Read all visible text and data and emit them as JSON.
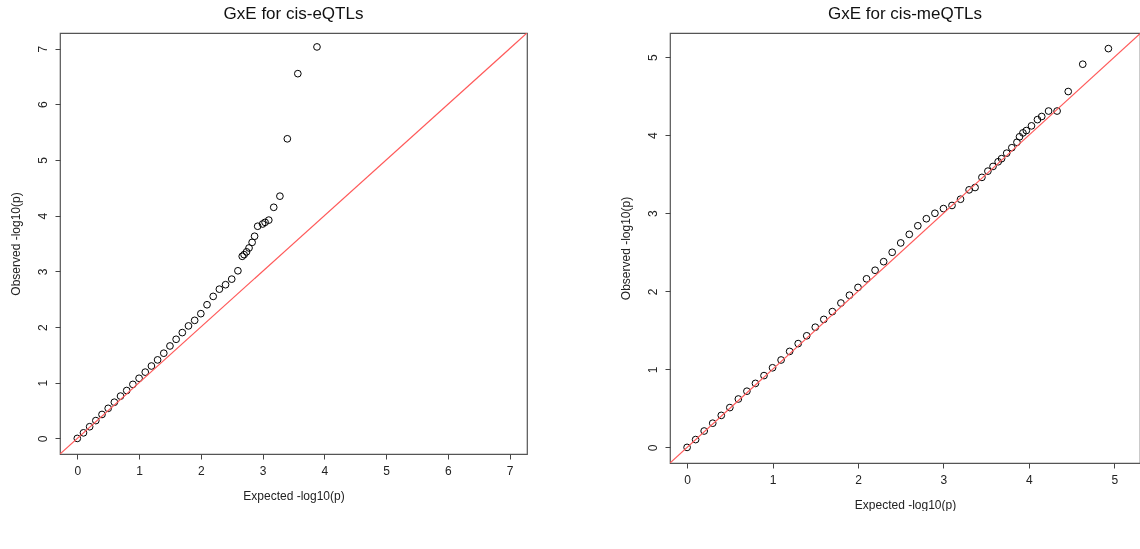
{
  "chart_data": [
    {
      "type": "scatter",
      "title": "GxE for cis-eQTLs",
      "xlabel": "Expected -log10(p)",
      "ylabel": "Observed -log10(p)",
      "grid": false,
      "xlim": [
        -0.28,
        7.28
      ],
      "ylim": [
        -0.28,
        7.28
      ],
      "xticks": [
        0,
        1,
        2,
        3,
        4,
        5,
        6,
        7
      ],
      "yticks": [
        0,
        1,
        2,
        3,
        4,
        5,
        6,
        7
      ],
      "series": [
        {
          "marker": "circle",
          "color": "#000000",
          "x": [
            0,
            0.1,
            0.2,
            0.3,
            0.4,
            0.5,
            0.6,
            0.7,
            0.8,
            0.9,
            1.0,
            1.1,
            1.2,
            1.3,
            1.4,
            1.5,
            1.6,
            1.7,
            1.8,
            1.9,
            2.0,
            2.1,
            2.2,
            2.3,
            2.4,
            2.5,
            2.6,
            2.67,
            2.7,
            2.74,
            2.78,
            2.83,
            2.87,
            2.92,
            3.0,
            3.04,
            3.1,
            3.18,
            3.28,
            3.4,
            3.57,
            3.88
          ],
          "values": [
            0,
            0.1,
            0.21,
            0.32,
            0.43,
            0.54,
            0.65,
            0.76,
            0.86,
            0.97,
            1.08,
            1.19,
            1.3,
            1.41,
            1.53,
            1.66,
            1.78,
            1.9,
            2.02,
            2.12,
            2.24,
            2.4,
            2.55,
            2.68,
            2.76,
            2.86,
            3.01,
            3.27,
            3.3,
            3.35,
            3.42,
            3.52,
            3.63,
            3.81,
            3.85,
            3.88,
            3.92,
            4.15,
            4.35,
            5.38,
            6.55,
            7.03
          ]
        },
        {
          "type": "line",
          "color": "#ff5a5a",
          "x": [
            -0.28,
            7.28
          ],
          "values": [
            -0.28,
            7.28
          ]
        }
      ]
    },
    {
      "type": "scatter",
      "title": "GxE for cis-meQTLs",
      "xlabel": "Expected -log10(p)",
      "ylabel": "Observed -log10(p)",
      "grid": false,
      "xlim": [
        -0.2,
        5.3
      ],
      "ylim": [
        -0.2,
        5.31
      ],
      "xticks": [
        0,
        1,
        2,
        3,
        4,
        5
      ],
      "yticks": [
        0,
        1,
        2,
        3,
        4,
        5
      ],
      "series": [
        {
          "marker": "circle",
          "color": "#000000",
          "x": [
            0,
            0.1,
            0.2,
            0.3,
            0.4,
            0.5,
            0.6,
            0.7,
            0.8,
            0.9,
            1.0,
            1.1,
            1.2,
            1.3,
            1.4,
            1.5,
            1.6,
            1.7,
            1.8,
            1.9,
            2.0,
            2.1,
            2.2,
            2.3,
            2.4,
            2.5,
            2.6,
            2.7,
            2.8,
            2.9,
            3.0,
            3.1,
            3.2,
            3.3,
            3.37,
            3.45,
            3.52,
            3.58,
            3.64,
            3.68,
            3.74,
            3.8,
            3.86,
            3.89,
            3.93,
            3.97,
            4.03,
            4.1,
            4.15,
            4.23,
            4.33,
            4.46,
            4.63,
            4.93
          ],
          "values": [
            0,
            0.1,
            0.21,
            0.31,
            0.41,
            0.51,
            0.62,
            0.72,
            0.82,
            0.92,
            1.02,
            1.12,
            1.23,
            1.33,
            1.43,
            1.54,
            1.64,
            1.74,
            1.85,
            1.95,
            2.05,
            2.16,
            2.27,
            2.38,
            2.5,
            2.62,
            2.73,
            2.84,
            2.93,
            3.0,
            3.06,
            3.1,
            3.18,
            3.3,
            3.33,
            3.46,
            3.54,
            3.6,
            3.66,
            3.7,
            3.77,
            3.84,
            3.91,
            3.98,
            4.03,
            4.06,
            4.12,
            4.2,
            4.24,
            4.31,
            4.31,
            4.56,
            4.91,
            5.11
          ]
        },
        {
          "type": "line",
          "color": "#ff5a5a",
          "x": [
            -0.2,
            5.3
          ],
          "values": [
            -0.2,
            5.3
          ]
        }
      ]
    }
  ]
}
